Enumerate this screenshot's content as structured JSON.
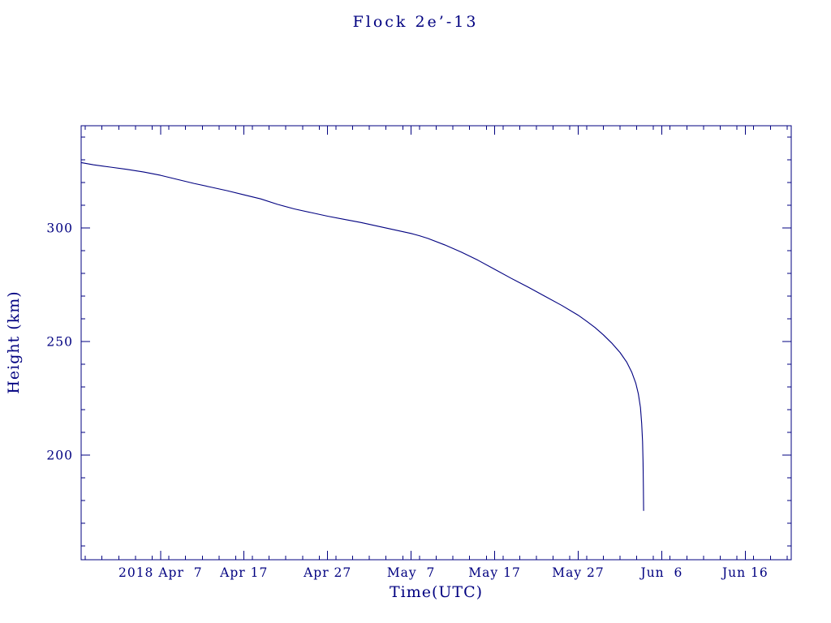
{
  "chart_data": {
    "type": "line",
    "title": "Flock 2e’-13",
    "xlabel": "Time(UTC)",
    "ylabel": "Height (km)",
    "axis_color": "#000080",
    "line_color": "#000080",
    "background_color": "#ffffff",
    "grid": false,
    "legend": "none",
    "x_unit": "day_of_year_2018",
    "xlim": [
      87.5,
      172.5
    ],
    "ylim": [
      154,
      345
    ],
    "x_major_ticks": [
      {
        "value": 97,
        "label": "2018 Apr  7"
      },
      {
        "value": 107,
        "label": "Apr 17"
      },
      {
        "value": 117,
        "label": "Apr 27"
      },
      {
        "value": 127,
        "label": "May  7"
      },
      {
        "value": 137,
        "label": "May 17"
      },
      {
        "value": 147,
        "label": "May 27"
      },
      {
        "value": 157,
        "label": "Jun  6"
      },
      {
        "value": 167,
        "label": "Jun 16"
      }
    ],
    "x_minor_step": 2,
    "y_major_ticks": [
      {
        "value": 200,
        "label": "200"
      },
      {
        "value": 250,
        "label": "250"
      },
      {
        "value": 300,
        "label": "300"
      }
    ],
    "y_minor_step": 10,
    "series": [
      {
        "name": "orbital height",
        "points": [
          [
            87.5,
            328.8
          ],
          [
            89,
            327.8
          ],
          [
            91,
            326.8
          ],
          [
            93,
            325.8
          ],
          [
            95,
            324.6
          ],
          [
            97,
            323.2
          ],
          [
            99,
            321.4
          ],
          [
            101,
            319.6
          ],
          [
            103,
            318.0
          ],
          [
            105,
            316.4
          ],
          [
            107,
            314.6
          ],
          [
            109,
            312.8
          ],
          [
            111,
            310.4
          ],
          [
            113,
            308.4
          ],
          [
            115,
            306.8
          ],
          [
            117,
            305.2
          ],
          [
            119,
            303.8
          ],
          [
            121,
            302.4
          ],
          [
            123,
            300.8
          ],
          [
            125,
            299.2
          ],
          [
            127,
            297.6
          ],
          [
            128,
            296.6
          ],
          [
            129,
            295.4
          ],
          [
            131,
            292.6
          ],
          [
            133,
            289.4
          ],
          [
            135,
            285.8
          ],
          [
            137,
            281.8
          ],
          [
            139,
            277.8
          ],
          [
            141,
            274.0
          ],
          [
            143,
            270.0
          ],
          [
            145,
            266.0
          ],
          [
            147,
            261.6
          ],
          [
            148,
            259.0
          ],
          [
            149,
            256.2
          ],
          [
            150,
            253.0
          ],
          [
            151,
            249.4
          ],
          [
            152,
            245.2
          ],
          [
            152.8,
            241.0
          ],
          [
            153.4,
            236.6
          ],
          [
            153.9,
            231.6
          ],
          [
            154.2,
            227.0
          ],
          [
            154.45,
            221.0
          ],
          [
            154.6,
            214.0
          ],
          [
            154.7,
            206.0
          ],
          [
            154.76,
            197.0
          ],
          [
            154.8,
            186.0
          ],
          [
            154.83,
            175.5
          ]
        ]
      }
    ]
  }
}
